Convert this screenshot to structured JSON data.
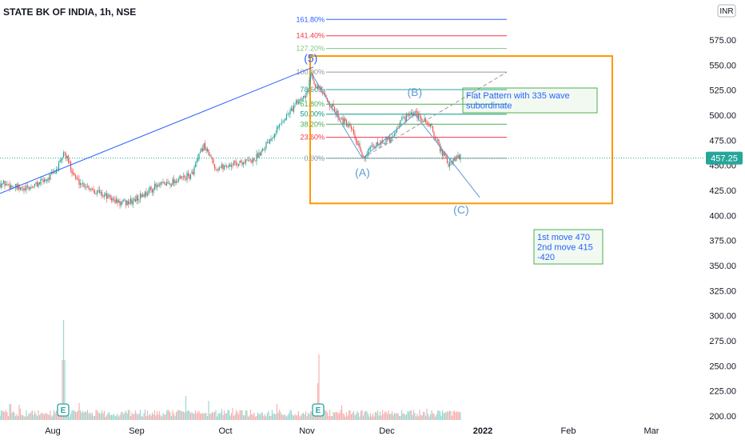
{
  "chart_data": {
    "type": "candlestick",
    "title": "STATE BK OF INDIA, 1h, NSE",
    "currency": "INR",
    "last_price": "457.25",
    "ylim": [
      197,
      615
    ],
    "y_ticks": [
      "575.00",
      "550.00",
      "525.00",
      "500.00",
      "475.00",
      "450.00",
      "425.00",
      "400.00",
      "375.00",
      "350.00",
      "325.00",
      "300.00",
      "275.00",
      "250.00",
      "225.00",
      "200.00"
    ],
    "x_ticks": [
      "Aug",
      "Sep",
      "Oct",
      "Nov",
      "Dec",
      "2022",
      "Feb",
      "Mar"
    ],
    "price_path": [
      {
        "date": "Jul 12",
        "price": 432
      },
      {
        "date": "Jul 20",
        "price": 425
      },
      {
        "date": "Jul 26",
        "price": 432
      },
      {
        "date": "Aug 1",
        "price": 441
      },
      {
        "date": "Aug 4",
        "price": 454
      },
      {
        "date": "Aug 5",
        "price": 464
      },
      {
        "date": "Aug 10",
        "price": 435
      },
      {
        "date": "Aug 18",
        "price": 424
      },
      {
        "date": "Aug 27",
        "price": 412
      },
      {
        "date": "Sep 1",
        "price": 414
      },
      {
        "date": "Sep 8",
        "price": 428
      },
      {
        "date": "Sep 14",
        "price": 434
      },
      {
        "date": "Sep 20",
        "price": 440
      },
      {
        "date": "Sep 24",
        "price": 470
      },
      {
        "date": "Sep 28",
        "price": 447
      },
      {
        "date": "Oct 5",
        "price": 452
      },
      {
        "date": "Oct 12",
        "price": 455
      },
      {
        "date": "Oct 18",
        "price": 476
      },
      {
        "date": "Oct 24",
        "price": 497
      },
      {
        "date": "Oct 29",
        "price": 513
      },
      {
        "date": "Nov 2",
        "price": 525
      },
      {
        "date": "Nov 3",
        "price": 542
      },
      {
        "date": "Nov 5",
        "price": 530
      },
      {
        "date": "Nov 9",
        "price": 515
      },
      {
        "date": "Nov 13",
        "price": 500
      },
      {
        "date": "Nov 18",
        "price": 485
      },
      {
        "date": "Nov 22",
        "price": 458
      },
      {
        "date": "Nov 28",
        "price": 473
      },
      {
        "date": "Dec 2",
        "price": 476
      },
      {
        "date": "Dec 6",
        "price": 496
      },
      {
        "date": "Dec 10",
        "price": 501
      },
      {
        "date": "Dec 15",
        "price": 490
      },
      {
        "date": "Dec 18",
        "price": 468
      },
      {
        "date": "Dec 21",
        "price": 450
      },
      {
        "date": "Dec 24",
        "price": 458
      },
      {
        "date": "Dec 27",
        "price": 460
      }
    ],
    "fibonacci": {
      "levels": [
        {
          "label": "161.80%",
          "price": 595.5,
          "color": "#2962ff"
        },
        {
          "label": "141.40%",
          "price": 579.2,
          "color": "#f23645"
        },
        {
          "label": "127.20%",
          "price": 566.5,
          "color": "#81c784"
        },
        {
          "label": "100.00%",
          "price": 543,
          "color": "#9598a1"
        },
        {
          "label": "78.60%",
          "price": 525.5,
          "color": "#26a69a"
        },
        {
          "label": "61.80%",
          "price": 511,
          "color": "#4caf50"
        },
        {
          "label": "50.00%",
          "price": 501,
          "color": "#089981"
        },
        {
          "label": "38.20%",
          "price": 491,
          "color": "#4caf50"
        },
        {
          "label": "23.60%",
          "price": 478,
          "color": "#f23645"
        },
        {
          "label": "0.00%",
          "price": 457,
          "color": "#9598a1"
        }
      ]
    },
    "wave_labels": [
      {
        "label": "(5)",
        "date": "Nov 3",
        "price": 553,
        "color": "#2962ff"
      },
      {
        "label": "(A)",
        "date": "Nov 22",
        "price": 439,
        "color": "#5b9bd5"
      },
      {
        "label": "(B)",
        "date": "Dec 10",
        "price": 519,
        "color": "#5b9bd5"
      },
      {
        "label": "(C)",
        "date": "Dec 25",
        "price": 402,
        "color": "#5b9bd5"
      }
    ],
    "annotations": [
      {
        "lines": [
          "Flat Pattern with 335 wave",
          "subordinate"
        ]
      },
      {
        "lines": [
          "1st move 470",
          "2nd move 415",
          "-420"
        ]
      }
    ],
    "volume_markers": [
      "E",
      "E"
    ]
  },
  "colors": {
    "up": "#26a69a",
    "down": "#ef5350",
    "trendline": "#2962ff",
    "box": "#ff9800",
    "price_tag": "#26a69a"
  }
}
